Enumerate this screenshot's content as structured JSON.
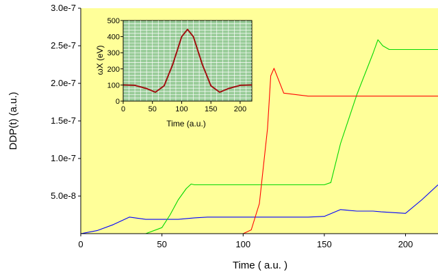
{
  "colors": {
    "plot_bg": "#ffff99",
    "inset_bg": "#99cc99",
    "inset_grid": "#ffffff",
    "series_blue": "#0000ff",
    "series_green": "#00d800",
    "series_red": "#ff0000",
    "inset_curve": "#a01010"
  },
  "chart_data": [
    {
      "type": "line",
      "title": "",
      "xlabel": "Time ( a.u. )",
      "ylabel": "DDP(t) (a.u.)",
      "xlim": [
        0,
        220
      ],
      "ylim": [
        0,
        3e-07
      ],
      "x_ticks": [
        0,
        50,
        100,
        150,
        200
      ],
      "x_tick_labels": [
        "0",
        "50",
        "100",
        "150",
        "200"
      ],
      "y_ticks": [
        5e-08,
        1e-07,
        1.5e-07,
        2e-07,
        2.5e-07,
        3e-07
      ],
      "y_tick_labels": [
        "5.0e-8",
        "1.0e-7",
        "1.5e-7",
        "2.0e-7",
        "2.5e-7",
        "3.0e-7"
      ],
      "grid": false,
      "series": [
        {
          "color": "#0000ff",
          "x": [
            0,
            10,
            20,
            30,
            40,
            50,
            60,
            70,
            78,
            100,
            120,
            140,
            150,
            160,
            170,
            180,
            185,
            200,
            210,
            220
          ],
          "y": [
            0,
            4e-09,
            1.2e-08,
            2.2e-08,
            1.9e-08,
            1.9e-08,
            1.9e-08,
            2.1e-08,
            2.2e-08,
            2.2e-08,
            2.2e-08,
            2.2e-08,
            2.3e-08,
            3.2e-08,
            3e-08,
            3e-08,
            2.9e-08,
            2.7e-08,
            4.5e-08,
            6.5e-08
          ]
        },
        {
          "color": "#00d800",
          "x": [
            0,
            40,
            50,
            55,
            60,
            65,
            68,
            70,
            80,
            100,
            130,
            150,
            154,
            160,
            170,
            180,
            183,
            186,
            190,
            200,
            220
          ],
          "y": [
            0,
            0,
            8e-09,
            2.5e-08,
            4.5e-08,
            6e-08,
            6.6e-08,
            6.5e-08,
            6.5e-08,
            6.5e-08,
            6.5e-08,
            6.5e-08,
            6.8e-08,
            1.2e-07,
            1.85e-07,
            2.4e-07,
            2.58e-07,
            2.5e-07,
            2.45e-07,
            2.45e-07,
            2.45e-07
          ]
        },
        {
          "color": "#ff0000",
          "x": [
            0,
            100,
            105,
            110,
            115,
            117,
            119,
            125,
            140,
            160,
            165,
            175,
            200,
            220
          ],
          "y": [
            0,
            0,
            5e-09,
            4e-08,
            1.4e-07,
            2.1e-07,
            2.2e-07,
            1.87e-07,
            1.83e-07,
            1.83e-07,
            1.83e-07,
            1.83e-07,
            1.83e-07,
            1.83e-07
          ]
        }
      ]
    },
    {
      "type": "line",
      "title": "",
      "xlabel": "Time (a.u.)",
      "ylabel": "ωX (eV)",
      "xlim": [
        0,
        220
      ],
      "ylim": [
        0,
        500
      ],
      "x_ticks": [
        0,
        50,
        100,
        150,
        200
      ],
      "x_tick_labels": [
        "0",
        "50",
        "100",
        "150",
        "200"
      ],
      "y_ticks": [
        0,
        100,
        200,
        300,
        400,
        500
      ],
      "y_tick_labels": [
        "0",
        "100",
        "200",
        "300",
        "400",
        "500"
      ],
      "grid": true,
      "series": [
        {
          "color": "#a01010",
          "x": [
            0,
            20,
            40,
            55,
            70,
            85,
            100,
            110,
            120,
            135,
            150,
            165,
            180,
            200,
            220
          ],
          "y": [
            100,
            98,
            78,
            55,
            95,
            230,
            400,
            445,
            400,
            230,
            95,
            55,
            78,
            98,
            100
          ]
        }
      ]
    }
  ]
}
